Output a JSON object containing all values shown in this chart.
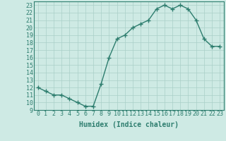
{
  "x": [
    0,
    1,
    2,
    3,
    4,
    5,
    6,
    7,
    8,
    9,
    10,
    11,
    12,
    13,
    14,
    15,
    16,
    17,
    18,
    19,
    20,
    21,
    22,
    23
  ],
  "y": [
    12,
    11.5,
    11,
    11,
    10.5,
    10,
    9.5,
    9.5,
    12.5,
    16,
    18.5,
    19,
    20,
    20.5,
    21,
    22.5,
    23,
    22.5,
    23,
    22.5,
    21,
    18.5,
    17.5,
    17.5
  ],
  "line_color": "#2d7d6e",
  "marker": "+",
  "marker_size": 4,
  "linewidth": 1.0,
  "bg_color": "#ceeae4",
  "grid_color": "#aacfc8",
  "xlabel": "Humidex (Indice chaleur)",
  "xlabel_fontsize": 7,
  "tick_fontsize": 6,
  "ylim": [
    9,
    23.5
  ],
  "xlim": [
    -0.5,
    23.5
  ],
  "yticks": [
    9,
    10,
    11,
    12,
    13,
    14,
    15,
    16,
    17,
    18,
    19,
    20,
    21,
    22,
    23
  ],
  "xticks": [
    0,
    1,
    2,
    3,
    4,
    5,
    6,
    7,
    8,
    9,
    10,
    11,
    12,
    13,
    14,
    15,
    16,
    17,
    18,
    19,
    20,
    21,
    22,
    23
  ]
}
